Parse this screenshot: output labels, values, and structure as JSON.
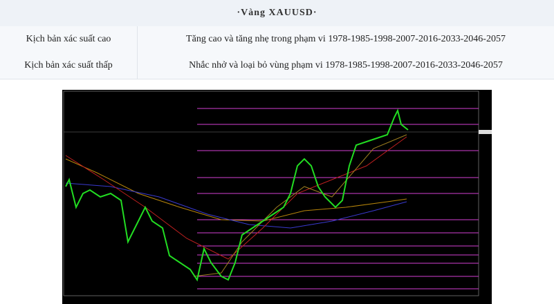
{
  "header": {
    "title": "·Vàng XAUUSD·"
  },
  "table": {
    "rows": [
      [
        "Kịch bản xác suất cao",
        "Tăng cao và tăng nhẹ trong phạm vi 1978-1985-1998-2007-2016-2033-2046-2057"
      ],
      [
        "Kịch bản xác suất thấp",
        "Nhắc nhở và loại bỏ vùng phạm vi 1978-1985-1998-2007-2016-2033-2046-2057"
      ]
    ]
  }
}
